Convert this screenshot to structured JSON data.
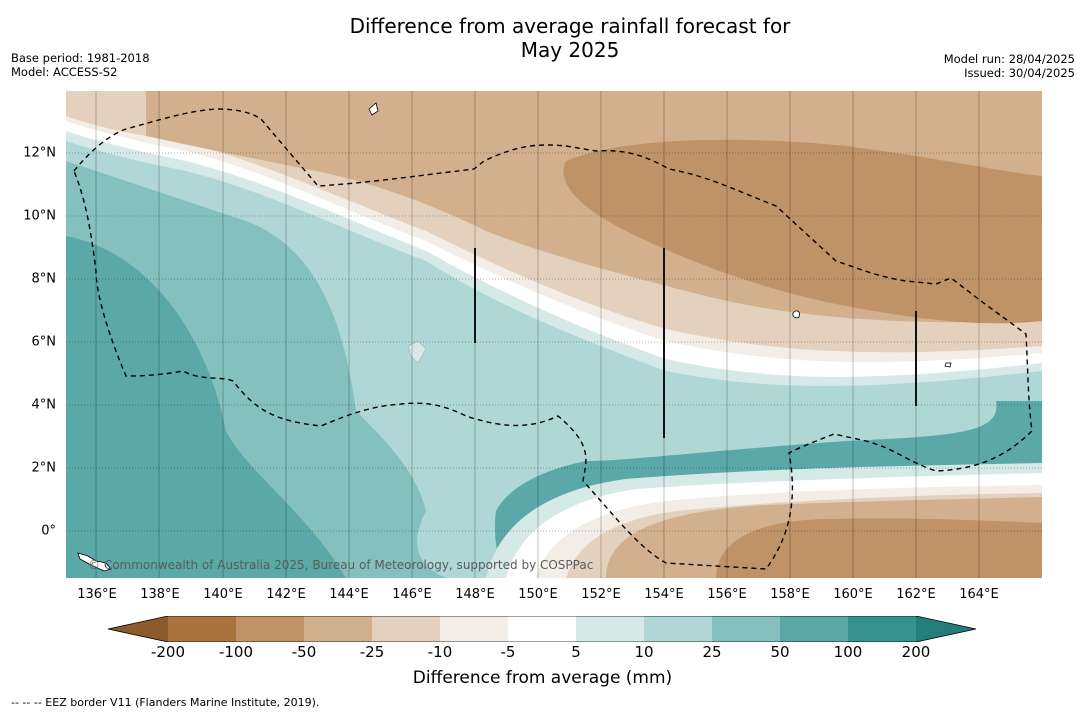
{
  "title": {
    "line1": "Difference from average rainfall forecast for",
    "line2": "May 2025"
  },
  "meta_left": {
    "base_period": "Base period: 1981-2018",
    "model": "Model: ACCESS-S2"
  },
  "meta_right": {
    "model_run": "Model run: 28/04/2025",
    "issued": "Issued: 30/04/2025"
  },
  "map": {
    "longitude_labels": [
      "136°E",
      "138°E",
      "140°E",
      "142°E",
      "144°E",
      "146°E",
      "148°E",
      "150°E",
      "152°E",
      "154°E",
      "156°E",
      "158°E",
      "160°E",
      "162°E",
      "164°E"
    ],
    "latitude_labels": [
      "12°N",
      "10°N",
      "8°N",
      "6°N",
      "4°N",
      "2°N",
      "0°"
    ],
    "copyright": "© Commonwealth of Australia 2025, Bureau of Meteorology, supported by COSPPac"
  },
  "colorbar": {
    "title": "Difference from average (mm)",
    "ticks": [
      "-200",
      "-100",
      "-50",
      "-25",
      "-10",
      "-5",
      "5",
      "10",
      "25",
      "50",
      "100",
      "200"
    ],
    "colors": [
      "#8c5a2b",
      "#a8733f",
      "#bf9268",
      "#d2b08e",
      "#e4d1bd",
      "#f2ede6",
      "#ffffff",
      "#d5e9e7",
      "#afd7d5",
      "#84c0be",
      "#5aa8a8",
      "#35928f",
      "#237e7b"
    ]
  },
  "footnote": "--  --  -- EEZ border V11 (Flanders Marine Institute, 2019)."
}
